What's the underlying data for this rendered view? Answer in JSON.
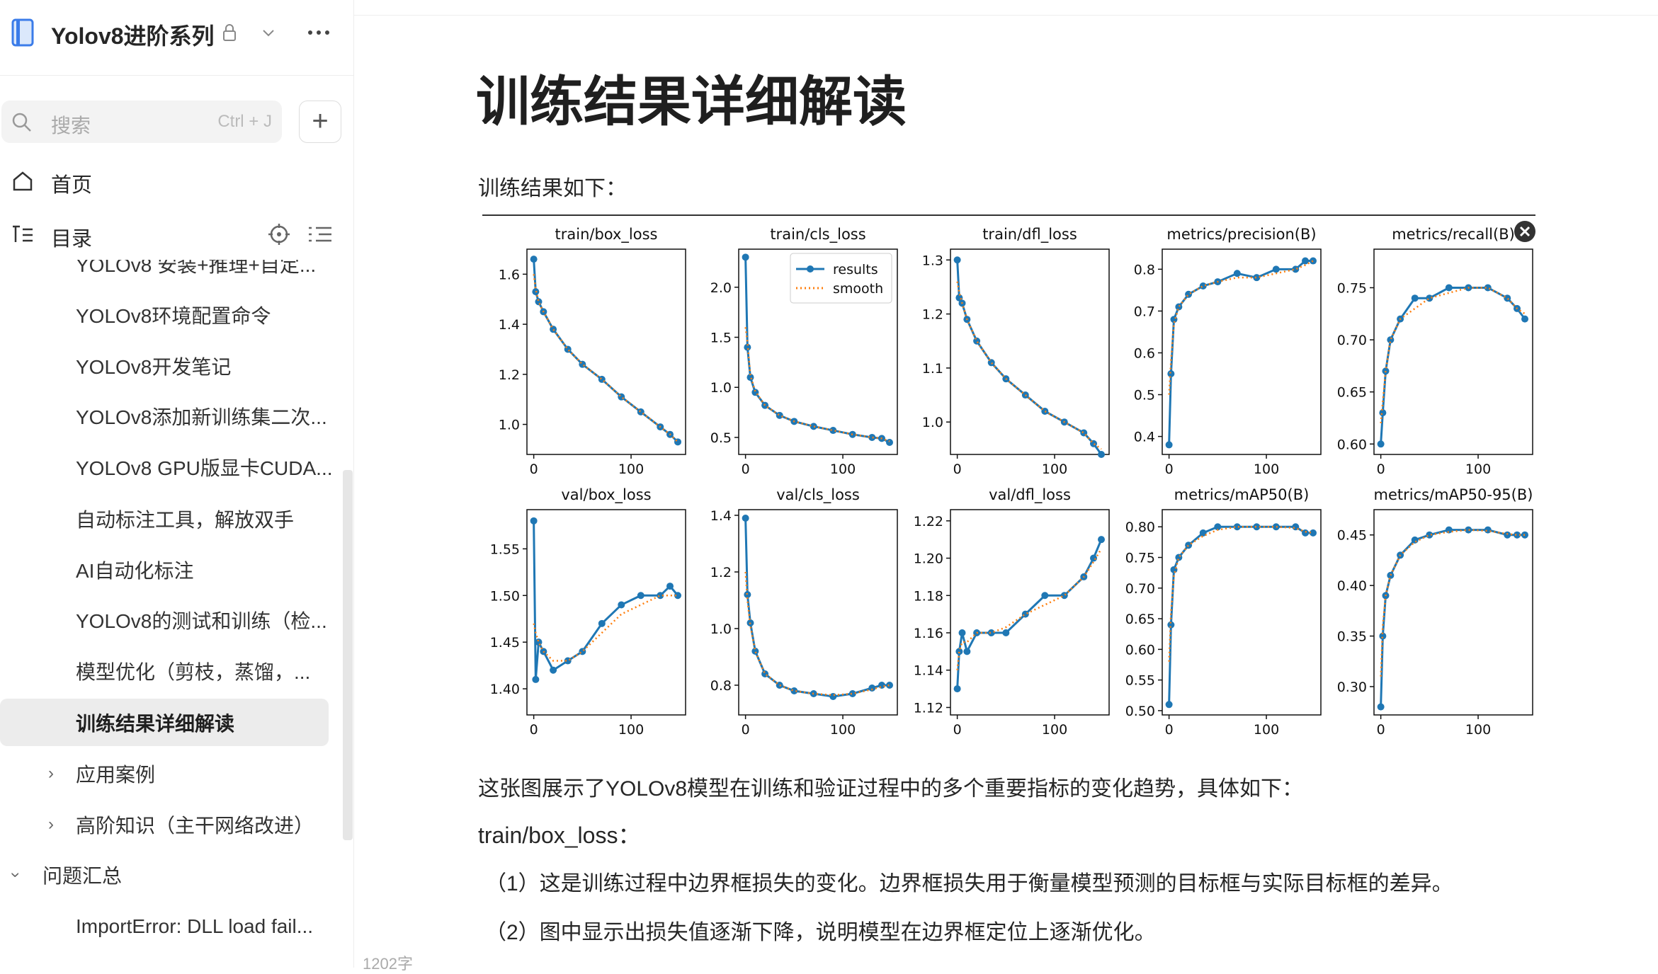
{
  "sidebar": {
    "title": "Yolov8进阶系列",
    "search_placeholder": "搜索",
    "shortcut": "Ctrl + J",
    "nav": [
      "首页",
      "目录"
    ],
    "items": [
      "YOLOv8 安装+推理+自定...",
      "YOLOv8环境配置命令",
      "YOLOv8开发笔记",
      "YOLOv8添加新训练集二次...",
      "YOLOv8 GPU版显卡CUDA...",
      "自动标注工具，解放双手",
      "AI自动化标注",
      "YOLOv8的测试和训练（检...",
      "模型优化（剪枝，蒸馏，...",
      "训练结果详细解读",
      "应用案例",
      "高阶知识（主干网络改进）",
      "问题汇总",
      "ImportError: DLL load fail..."
    ]
  },
  "doc": {
    "title": "训练结果详细解读",
    "intro": "训练结果如下：",
    "paragraphs": [
      "这张图展示了YOLOv8模型在训练和验证过程中的多个重要指标的变化趋势，具体如下：",
      "train/box_loss：",
      "（1）这是训练过程中边界框损失的变化。边界框损失用于衡量模型预测的目标框与实际目标框的差异。",
      "（2）图中显示出损失值逐渐下降，说明模型在边界框定位上逐渐优化。"
    ]
  },
  "footer": {
    "word_count": "1202字"
  },
  "chart_data": [
    {
      "type": "line",
      "title": "train/box_loss",
      "x": [
        0,
        2,
        5,
        10,
        20,
        35,
        50,
        70,
        90,
        110,
        130,
        140,
        148
      ],
      "xlim": [
        -7,
        156
      ],
      "xticks": [
        0,
        100
      ],
      "ylim": [
        0.88,
        1.7
      ],
      "yticks": [
        {
          "value": 1,
          "label": "1.0"
        },
        1.2,
        1.4,
        1.6
      ],
      "series": [
        {
          "color": "#1f77b4",
          "style": "solid",
          "marker": true,
          "values": [
            1.66,
            1.53,
            1.49,
            1.45,
            1.38,
            1.3,
            1.24,
            1.18,
            1.11,
            1.05,
            0.99,
            0.96,
            0.93
          ]
        },
        {
          "color": "#ff7f0e",
          "style": "dotted",
          "marker": false,
          "values": [
            1.6,
            1.54,
            1.49,
            1.45,
            1.38,
            1.3,
            1.24,
            1.18,
            1.11,
            1.05,
            0.99,
            0.96,
            0.93
          ]
        }
      ]
    },
    {
      "type": "line",
      "title": "train/cls_loss",
      "x": [
        0,
        2,
        5,
        10,
        20,
        35,
        50,
        70,
        90,
        110,
        130,
        140,
        148
      ],
      "xlim": [
        -7,
        156
      ],
      "xticks": [
        0,
        100
      ],
      "ylim": [
        0.33,
        2.38
      ],
      "yticks": [
        0.5,
        {
          "value": 1,
          "label": "1.0"
        },
        1.5,
        {
          "value": 2,
          "label": "2.0"
        }
      ],
      "legend": "upper right",
      "series": [
        {
          "name": "results",
          "color": "#1f77b4",
          "style": "solid",
          "marker": true,
          "values": [
            2.3,
            1.4,
            1.1,
            0.95,
            0.82,
            0.72,
            0.66,
            0.61,
            0.57,
            0.53,
            0.5,
            0.49,
            0.45
          ]
        },
        {
          "name": "smooth",
          "color": "#ff7f0e",
          "style": "dotted",
          "marker": false,
          "values": [
            1.6,
            1.45,
            1.12,
            0.96,
            0.82,
            0.72,
            0.66,
            0.61,
            0.57,
            0.53,
            0.5,
            0.49,
            0.46
          ]
        }
      ]
    },
    {
      "type": "line",
      "title": "train/dfl_loss",
      "x": [
        0,
        2,
        5,
        10,
        20,
        35,
        50,
        70,
        90,
        110,
        130,
        140,
        148
      ],
      "xlim": [
        -7,
        156
      ],
      "xticks": [
        0,
        100
      ],
      "ylim": [
        0.94,
        1.32
      ],
      "yticks": [
        {
          "value": 1,
          "label": "1.0"
        },
        1.1,
        1.2,
        1.3
      ],
      "series": [
        {
          "color": "#1f77b4",
          "style": "solid",
          "marker": true,
          "values": [
            1.3,
            1.23,
            1.22,
            1.19,
            1.15,
            1.11,
            1.08,
            1.05,
            1.02,
            1.0,
            0.98,
            0.96,
            0.94
          ]
        },
        {
          "color": "#ff7f0e",
          "style": "dotted",
          "marker": false,
          "values": [
            1.26,
            1.24,
            1.22,
            1.19,
            1.15,
            1.11,
            1.08,
            1.05,
            1.02,
            1.0,
            0.98,
            0.96,
            0.95
          ]
        }
      ]
    },
    {
      "type": "line",
      "title": "metrics/precision(B)",
      "x": [
        0,
        2,
        5,
        10,
        20,
        35,
        50,
        70,
        90,
        110,
        130,
        140,
        148
      ],
      "xlim": [
        -7,
        156
      ],
      "xticks": [
        0,
        100
      ],
      "ylim": [
        0.357,
        0.848
      ],
      "yticks": [
        0.4,
        0.5,
        0.6,
        0.7,
        0.8
      ],
      "series": [
        {
          "color": "#1f77b4",
          "style": "solid",
          "marker": true,
          "values": [
            0.38,
            0.55,
            0.68,
            0.71,
            0.74,
            0.76,
            0.77,
            0.79,
            0.78,
            0.8,
            0.8,
            0.82,
            0.82
          ]
        },
        {
          "color": "#ff7f0e",
          "style": "dotted",
          "marker": false,
          "values": [
            0.5,
            0.58,
            0.67,
            0.71,
            0.74,
            0.76,
            0.77,
            0.78,
            0.78,
            0.79,
            0.8,
            0.81,
            0.82
          ]
        }
      ]
    },
    {
      "type": "line",
      "title": "metrics/recall(B)",
      "x": [
        0,
        2,
        5,
        10,
        20,
        35,
        50,
        70,
        90,
        110,
        130,
        140,
        148
      ],
      "xlim": [
        -7,
        156
      ],
      "xticks": [
        0,
        100
      ],
      "ylim": [
        0.59,
        0.787
      ],
      "yticks": [
        {
          "value": 0.6,
          "label": "0.60"
        },
        0.65,
        {
          "value": 0.7,
          "label": "0.70"
        },
        0.75
      ],
      "series": [
        {
          "color": "#1f77b4",
          "style": "solid",
          "marker": true,
          "values": [
            0.6,
            0.63,
            0.67,
            0.7,
            0.72,
            0.74,
            0.74,
            0.75,
            0.75,
            0.75,
            0.74,
            0.73,
            0.72
          ]
        },
        {
          "color": "#ff7f0e",
          "style": "dotted",
          "marker": false,
          "values": [
            0.62,
            0.64,
            0.67,
            0.7,
            0.72,
            0.73,
            0.74,
            0.745,
            0.75,
            0.75,
            0.74,
            0.73,
            0.725
          ]
        }
      ]
    },
    {
      "type": "line",
      "title": "val/box_loss",
      "x": [
        0,
        2,
        5,
        10,
        20,
        35,
        50,
        70,
        90,
        110,
        130,
        140,
        148
      ],
      "xlim": [
        -7,
        156
      ],
      "xticks": [
        0,
        100
      ],
      "ylim": [
        1.372,
        1.592
      ],
      "yticks": [
        {
          "value": 1.4,
          "label": "1.40"
        },
        1.45,
        {
          "value": 1.5,
          "label": "1.50"
        },
        1.55
      ],
      "series": [
        {
          "color": "#1f77b4",
          "style": "solid",
          "marker": true,
          "values": [
            1.58,
            1.41,
            1.45,
            1.44,
            1.42,
            1.43,
            1.44,
            1.47,
            1.49,
            1.5,
            1.5,
            1.51,
            1.5
          ]
        },
        {
          "color": "#ff7f0e",
          "style": "dotted",
          "marker": false,
          "values": [
            1.47,
            1.46,
            1.45,
            1.44,
            1.43,
            1.43,
            1.44,
            1.46,
            1.48,
            1.49,
            1.5,
            1.5,
            1.5
          ]
        }
      ]
    },
    {
      "type": "line",
      "title": "val/cls_loss",
      "x": [
        0,
        2,
        5,
        10,
        20,
        35,
        50,
        70,
        90,
        110,
        130,
        140,
        148
      ],
      "xlim": [
        -7,
        156
      ],
      "xticks": [
        0,
        100
      ],
      "ylim": [
        0.695,
        1.42
      ],
      "yticks": [
        0.8,
        {
          "value": 1,
          "label": "1.0"
        },
        1.2,
        1.4
      ],
      "series": [
        {
          "color": "#1f77b4",
          "style": "solid",
          "marker": true,
          "values": [
            1.39,
            1.12,
            1.02,
            0.92,
            0.84,
            0.8,
            0.78,
            0.77,
            0.76,
            0.77,
            0.79,
            0.8,
            0.8
          ]
        },
        {
          "color": "#ff7f0e",
          "style": "dotted",
          "marker": false,
          "values": [
            1.2,
            1.1,
            1.01,
            0.92,
            0.84,
            0.8,
            0.78,
            0.77,
            0.765,
            0.77,
            0.785,
            0.795,
            0.8
          ]
        }
      ]
    },
    {
      "type": "line",
      "title": "val/dfl_loss",
      "x": [
        0,
        2,
        5,
        10,
        20,
        35,
        50,
        70,
        90,
        110,
        130,
        140,
        148
      ],
      "xlim": [
        -7,
        156
      ],
      "xticks": [
        0,
        100
      ],
      "ylim": [
        1.116,
        1.226
      ],
      "yticks": [
        1.12,
        1.14,
        1.16,
        1.18,
        {
          "value": 1.2,
          "label": "1.20"
        },
        1.22
      ],
      "series": [
        {
          "color": "#1f77b4",
          "style": "solid",
          "marker": true,
          "values": [
            1.13,
            1.15,
            1.16,
            1.15,
            1.16,
            1.16,
            1.16,
            1.17,
            1.18,
            1.18,
            1.19,
            1.2,
            1.21
          ]
        },
        {
          "color": "#ff7f0e",
          "style": "dotted",
          "marker": false,
          "values": [
            1.14,
            1.15,
            1.155,
            1.155,
            1.16,
            1.16,
            1.163,
            1.17,
            1.175,
            1.18,
            1.19,
            1.198,
            1.205
          ]
        }
      ]
    },
    {
      "type": "line",
      "title": "metrics/mAP50(B)",
      "x": [
        0,
        2,
        5,
        10,
        20,
        35,
        50,
        70,
        90,
        110,
        130,
        140,
        148
      ],
      "xlim": [
        -7,
        156
      ],
      "xticks": [
        0,
        100
      ],
      "ylim": [
        0.493,
        0.828
      ],
      "yticks": [
        {
          "value": 0.5,
          "label": "0.50"
        },
        0.55,
        {
          "value": 0.6,
          "label": "0.60"
        },
        0.65,
        {
          "value": 0.7,
          "label": "0.70"
        },
        0.75,
        {
          "value": 0.8,
          "label": "0.80"
        }
      ],
      "series": [
        {
          "color": "#1f77b4",
          "style": "solid",
          "marker": true,
          "values": [
            0.51,
            0.64,
            0.73,
            0.75,
            0.77,
            0.79,
            0.8,
            0.8,
            0.8,
            0.8,
            0.8,
            0.79,
            0.79
          ]
        },
        {
          "color": "#ff7f0e",
          "style": "dotted",
          "marker": false,
          "values": [
            0.58,
            0.66,
            0.72,
            0.75,
            0.77,
            0.785,
            0.795,
            0.8,
            0.8,
            0.8,
            0.798,
            0.792,
            0.79
          ]
        }
      ]
    },
    {
      "type": "line",
      "title": "metrics/mAP50-95(B)",
      "x": [
        0,
        2,
        5,
        10,
        20,
        35,
        50,
        70,
        90,
        110,
        130,
        140,
        148
      ],
      "xlim": [
        -7,
        156
      ],
      "xticks": [
        0,
        100
      ],
      "ylim": [
        0.272,
        0.475
      ],
      "yticks": [
        {
          "value": 0.3,
          "label": "0.30"
        },
        0.35,
        {
          "value": 0.4,
          "label": "0.40"
        },
        0.45
      ],
      "series": [
        {
          "color": "#1f77b4",
          "style": "solid",
          "marker": true,
          "values": [
            0.28,
            0.35,
            0.39,
            0.41,
            0.43,
            0.445,
            0.45,
            0.455,
            0.455,
            0.455,
            0.45,
            0.45,
            0.45
          ]
        },
        {
          "color": "#ff7f0e",
          "style": "dotted",
          "marker": false,
          "values": [
            0.31,
            0.36,
            0.39,
            0.41,
            0.43,
            0.443,
            0.45,
            0.453,
            0.455,
            0.454,
            0.451,
            0.45,
            0.45
          ]
        }
      ]
    }
  ]
}
